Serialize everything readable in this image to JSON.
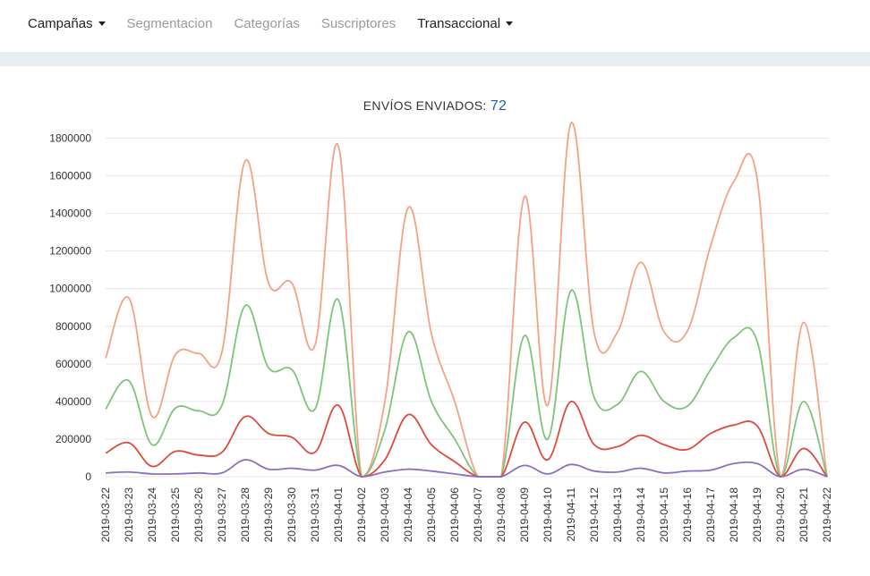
{
  "nav": {
    "items": [
      {
        "label": "Campañas",
        "active": true,
        "dropdown": true
      },
      {
        "label": "Segmentacion",
        "active": false,
        "dropdown": false
      },
      {
        "label": "Categorías",
        "active": false,
        "dropdown": false
      },
      {
        "label": "Suscriptores",
        "active": false,
        "dropdown": false
      },
      {
        "label": "Transaccional",
        "active": true,
        "dropdown": true
      }
    ]
  },
  "chart_title": {
    "label": "ENVÍOS ENVIADOS:",
    "count": "72"
  },
  "chart_data": {
    "type": "line",
    "grid": true,
    "x": [
      "2019-03-22",
      "2019-03-23",
      "2019-03-24",
      "2019-03-25",
      "2019-03-26",
      "2019-03-27",
      "2019-03-28",
      "2019-03-29",
      "2019-03-30",
      "2019-03-31",
      "2019-04-01",
      "2019-04-02",
      "2019-04-03",
      "2019-04-04",
      "2019-04-05",
      "2019-04-06",
      "2019-04-07",
      "2019-04-08",
      "2019-04-09",
      "2019-04-10",
      "2019-04-11",
      "2019-04-12",
      "2019-04-13",
      "2019-04-14",
      "2019-04-15",
      "2019-04-16",
      "2019-04-17",
      "2019-04-18",
      "2019-04-19",
      "2019-04-20",
      "2019-04-21",
      "2019-04-22"
    ],
    "yticks": [
      0,
      200000,
      400000,
      600000,
      800000,
      1000000,
      1200000,
      1400000,
      1600000,
      1800000
    ],
    "ylim": [
      0,
      1850000
    ],
    "series": [
      {
        "color": "#f4a285",
        "values": [
          630000,
          950000,
          320000,
          650000,
          655000,
          665000,
          1680000,
          1030000,
          1030000,
          700000,
          1760000,
          0,
          400000,
          1430000,
          760000,
          400000,
          0,
          0,
          1490000,
          380000,
          1880000,
          760000,
          770000,
          1140000,
          770000,
          775000,
          1230000,
          1570000,
          1580000,
          0,
          820000,
          0
        ]
      },
      {
        "color": "#7ec47a",
        "values": [
          360000,
          510000,
          170000,
          365000,
          350000,
          380000,
          910000,
          580000,
          570000,
          360000,
          940000,
          0,
          250000,
          770000,
          400000,
          200000,
          0,
          0,
          750000,
          200000,
          990000,
          420000,
          385000,
          560000,
          400000,
          375000,
          570000,
          740000,
          720000,
          0,
          400000,
          0
        ]
      },
      {
        "color": "#dd4b39",
        "values": [
          125000,
          180000,
          55000,
          135000,
          115000,
          130000,
          320000,
          230000,
          210000,
          130000,
          380000,
          0,
          90000,
          330000,
          170000,
          80000,
          0,
          0,
          290000,
          90000,
          400000,
          170000,
          160000,
          220000,
          170000,
          145000,
          230000,
          275000,
          270000,
          0,
          150000,
          0
        ]
      },
      {
        "color": "#8c6fbf",
        "values": [
          20000,
          25000,
          15000,
          15000,
          20000,
          20000,
          90000,
          40000,
          45000,
          35000,
          60000,
          0,
          25000,
          40000,
          30000,
          15000,
          0,
          0,
          60000,
          15000,
          65000,
          30000,
          25000,
          45000,
          20000,
          30000,
          35000,
          70000,
          70000,
          0,
          40000,
          0
        ]
      }
    ]
  }
}
